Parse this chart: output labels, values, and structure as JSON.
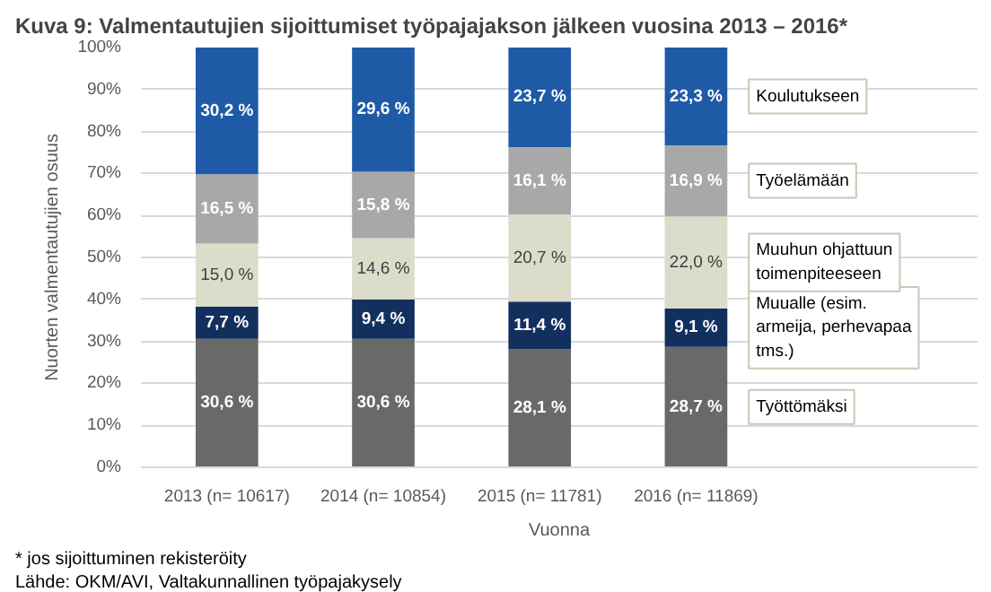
{
  "chart_data": {
    "type": "bar",
    "stacked": true,
    "title": "Kuva 9: Valmentautujien sijoittumiset työpajajakson jälkeen vuosina 2013 – 2016*",
    "xlabel": "Vuonna",
    "ylabel": "Nuorten valmentautujien osuus",
    "categories": [
      "2013 (n= 10617)",
      "2014 (n= 10854)",
      "2015 (n= 11781)",
      "2016 (n= 11869)"
    ],
    "series": [
      {
        "name": "Työttömäksi",
        "color": "#696969",
        "values": [
          30.6,
          30.6,
          28.1,
          28.7
        ],
        "value_labels": [
          "30,6 %",
          "30,6 %",
          "28,1 %",
          "28,7 %"
        ]
      },
      {
        "name": "Muualle (esim. armeija, perhevapaa tms.)",
        "color": "#12305e",
        "values": [
          7.7,
          9.4,
          11.4,
          9.1
        ],
        "value_labels": [
          "7,7 %",
          "9,4 %",
          "11,4 %",
          "9,1 %"
        ]
      },
      {
        "name": "Muuhun ohjattuun toimenpiteeseen",
        "color": "#dcdccb",
        "values": [
          15.0,
          14.6,
          20.7,
          22.0
        ],
        "value_labels": [
          "15,0 %",
          "14,6 %",
          "20,7 %",
          "22,0 %"
        ]
      },
      {
        "name": "Työelämään",
        "color": "#a8a8a8",
        "values": [
          16.5,
          15.8,
          16.1,
          16.9
        ],
        "value_labels": [
          "16,5 %",
          "15,8 %",
          "16,1 %",
          "16,9 %"
        ]
      },
      {
        "name": "Koulutukseen",
        "color": "#1f5aa6",
        "values": [
          30.2,
          29.6,
          23.7,
          23.3
        ],
        "value_labels": [
          "30,2 %",
          "29,6 %",
          "23,7 %",
          "23,3 %"
        ]
      }
    ],
    "ylim": [
      0,
      100
    ],
    "yticks": [
      {
        "value": 0,
        "label": "0%"
      },
      {
        "value": 10,
        "label": "10%"
      },
      {
        "value": 20,
        "label": "20%"
      },
      {
        "value": 30,
        "label": "30%"
      },
      {
        "value": 40,
        "label": "40%"
      },
      {
        "value": 50,
        "label": "50%"
      },
      {
        "value": 60,
        "label": "60%"
      },
      {
        "value": 70,
        "label": "70%"
      },
      {
        "value": 80,
        "label": "80%"
      },
      {
        "value": 90,
        "label": "90%"
      },
      {
        "value": 100,
        "label": "100%"
      }
    ],
    "grid": "y",
    "legend": "right",
    "annotations": [
      "* jos sijoittuminen rekisteröity",
      "Lähde: OKM/AVI, Valtakunnallinen työpajakysely"
    ]
  }
}
